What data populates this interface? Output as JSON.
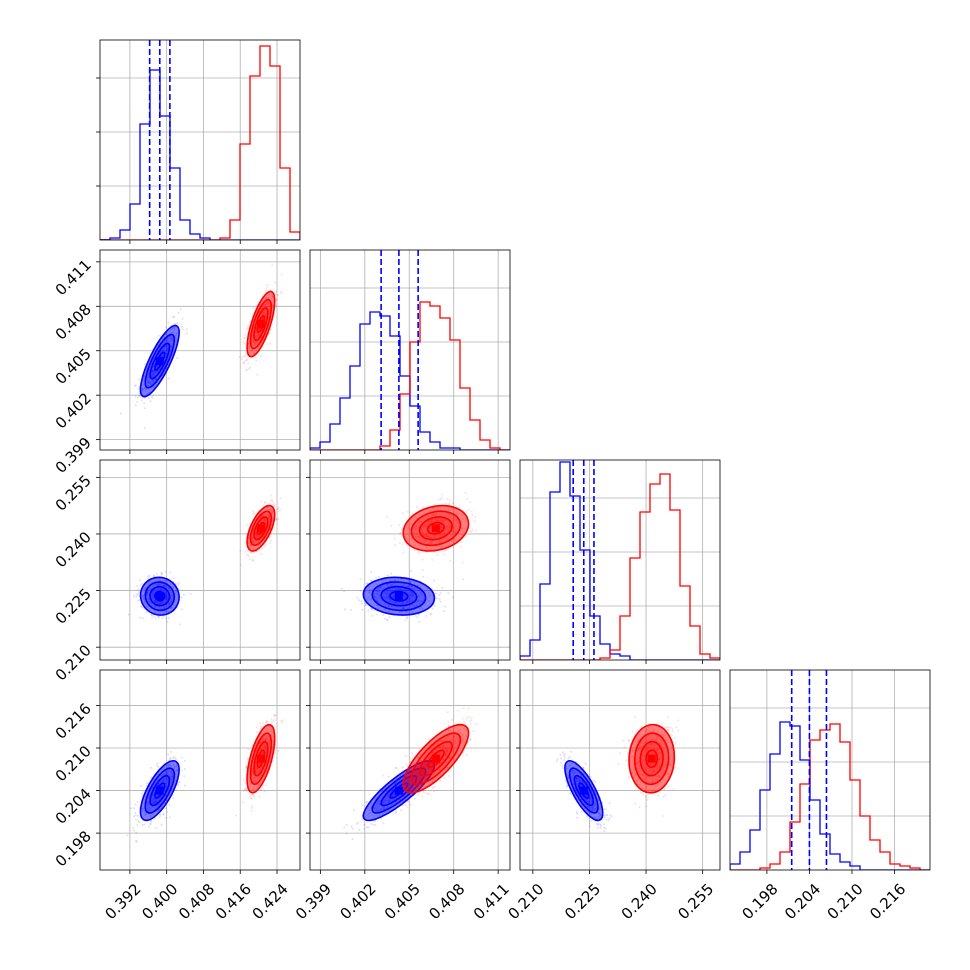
{
  "chart_data": {
    "type": "corner",
    "title": "",
    "parameters": [
      {
        "name": "p0",
        "label": "",
        "xlim": [
          0.3855,
          0.429
        ],
        "ylim": null,
        "ticks": [
          0.392,
          0.4,
          0.408,
          0.416,
          0.424
        ],
        "tick_labels": [
          "0.392",
          "0.400",
          "0.408",
          "0.416",
          "0.424"
        ]
      },
      {
        "name": "p1",
        "label": "",
        "xlim": [
          0.3983,
          0.4118
        ],
        "ylim": [
          0.3983,
          0.4118
        ],
        "ticks": [
          0.399,
          0.402,
          0.405,
          0.408,
          0.411
        ],
        "tick_labels": [
          "0.399",
          "0.402",
          "0.405",
          "0.408",
          "0.411"
        ]
      },
      {
        "name": "p2",
        "label": "",
        "xlim": [
          0.2066,
          0.2596
        ],
        "ylim": [
          0.2066,
          0.2596
        ],
        "ticks": [
          0.21,
          0.225,
          0.24,
          0.255
        ],
        "tick_labels": [
          "0.210",
          "0.225",
          "0.240",
          "0.255"
        ]
      },
      {
        "name": "p3",
        "label": "",
        "xlim": [
          0.1928,
          0.221
        ],
        "ylim": [
          0.1928,
          0.221
        ],
        "ticks": [
          0.198,
          0.204,
          0.21,
          0.216
        ],
        "tick_labels": [
          "0.198",
          "0.204",
          "0.210",
          "0.216"
        ]
      }
    ],
    "series": [
      {
        "name": "",
        "color": "#0000ff",
        "mean": [
          0.3985,
          0.4043,
          0.2235,
          0.204
        ],
        "sd": [
          0.0021,
          0.0012,
          0.0025,
          0.0021
        ],
        "quantiles": [
          [
            0.3963,
            0.3985,
            0.4007
          ],
          [
            0.4031,
            0.4043,
            0.4056
          ],
          [
            0.2207,
            0.2235,
            0.2262
          ],
          [
            0.2015,
            0.204,
            0.2064
          ]
        ],
        "correlations": {
          "p0-p1": 0.8,
          "p0-p2": -0.05,
          "p0-p3": 0.7,
          "p1-p2": -0.1,
          "p1-p3": 0.85,
          "p2-p3": -0.75
        }
      },
      {
        "name": "",
        "color": "#ff0000",
        "mean": [
          0.4205,
          0.4068,
          0.2415,
          0.2085
        ],
        "sd": [
          0.0015,
          0.0011,
          0.003,
          0.0024
        ],
        "quantiles": null,
        "correlations": {
          "p0-p1": 0.7,
          "p0-p2": 0.6,
          "p0-p3": 0.6,
          "p1-p2": 0.2,
          "p1-p3": 0.75,
          "p2-p3": 0.05
        }
      }
    ],
    "histograms": {
      "bins": 20,
      "blue": [
        [
          0.001,
          0.01,
          0.05,
          0.18,
          0.58,
          0.85,
          0.62,
          0.36,
          0.1,
          0.03,
          0.01,
          0,
          0,
          0,
          0,
          0,
          0,
          0,
          0,
          0
        ],
        [
          0.01,
          0.04,
          0.13,
          0.26,
          0.42,
          0.63,
          0.69,
          0.67,
          0.57,
          0.37,
          0.22,
          0.09,
          0.04,
          0.01,
          0.01,
          0,
          0,
          0,
          0,
          0
        ],
        [
          0.02,
          0.1,
          0.38,
          0.84,
          0.99,
          0.82,
          0.55,
          0.22,
          0.08,
          0.03,
          0.02,
          0,
          0,
          0,
          0,
          0,
          0,
          0,
          0,
          0
        ],
        [
          0.03,
          0.09,
          0.2,
          0.4,
          0.58,
          0.74,
          0.72,
          0.55,
          0.35,
          0.18,
          0.08,
          0.04,
          0.02,
          0,
          0,
          0,
          0,
          0,
          0,
          0
        ]
      ],
      "red": [
        [
          0,
          0,
          0,
          0,
          0,
          0,
          0,
          0,
          0,
          0,
          0,
          0,
          0.01,
          0.1,
          0.48,
          0.82,
          0.97,
          0.87,
          0.36,
          0.04
        ],
        [
          0,
          0,
          0,
          0,
          0,
          0,
          0,
          0.02,
          0.1,
          0.28,
          0.54,
          0.74,
          0.72,
          0.66,
          0.55,
          0.31,
          0.15,
          0.05,
          0.01,
          0
        ],
        [
          0,
          0,
          0,
          0,
          0,
          0,
          0,
          0,
          0.01,
          0.05,
          0.22,
          0.51,
          0.74,
          0.88,
          0.93,
          0.75,
          0.37,
          0.17,
          0.03,
          0.01
        ],
        [
          0,
          0,
          0,
          0.01,
          0.03,
          0.09,
          0.24,
          0.43,
          0.65,
          0.7,
          0.73,
          0.64,
          0.45,
          0.27,
          0.15,
          0.09,
          0.03,
          0.02,
          0.01,
          0
        ]
      ]
    },
    "contour_levels_sigma": [
      0.5,
      1.0,
      1.5,
      2.0
    ],
    "grid": true,
    "legend": "none"
  }
}
